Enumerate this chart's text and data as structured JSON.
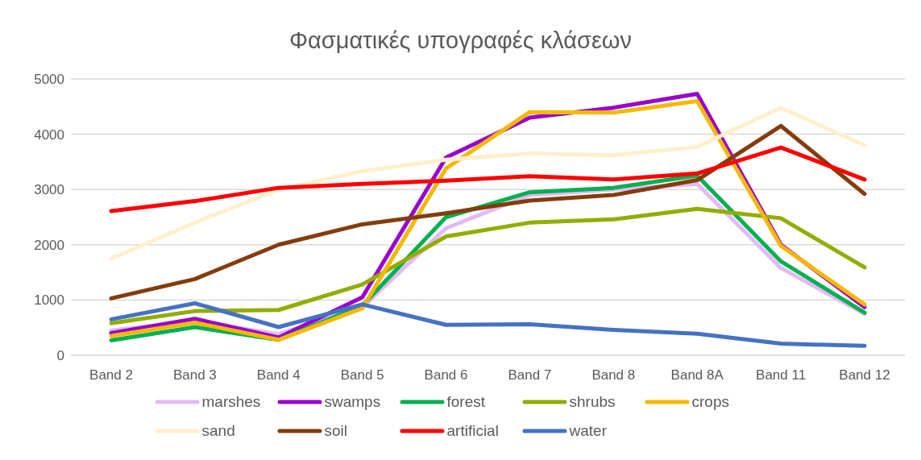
{
  "chart_data": {
    "type": "line",
    "title": "Φασματικές υπογραφές κλάσεων",
    "categories": [
      "Band 2",
      "Band 3",
      "Band 4",
      "Band 5",
      "Band 6",
      "Band 7",
      "Band 8",
      "Band 8A",
      "Band 11",
      "Band 12"
    ],
    "series": [
      {
        "name": "marshes",
        "color": "#e4b9f7",
        "values": [
          450,
          620,
          380,
          870,
          2300,
          2900,
          3000,
          3100,
          1580,
          750
        ]
      },
      {
        "name": "swamps",
        "color": "#9900cc",
        "values": [
          400,
          660,
          320,
          1050,
          3580,
          4300,
          4480,
          4730,
          2000,
          870
        ]
      },
      {
        "name": "forest",
        "color": "#00b050",
        "values": [
          270,
          510,
          280,
          900,
          2500,
          2950,
          3030,
          3250,
          1700,
          770
        ]
      },
      {
        "name": "shrubs",
        "color": "#92ad00",
        "values": [
          580,
          800,
          820,
          1280,
          2150,
          2400,
          2460,
          2650,
          2480,
          1590
        ]
      },
      {
        "name": "crops",
        "color": "#f5b800",
        "values": [
          350,
          590,
          280,
          850,
          3380,
          4400,
          4390,
          4600,
          1980,
          920
        ]
      },
      {
        "name": "sand",
        "color": "#fff0cc",
        "values": [
          1750,
          2400,
          3000,
          3330,
          3540,
          3650,
          3620,
          3770,
          4480,
          3800
        ]
      },
      {
        "name": "soil",
        "color": "#843c0c",
        "values": [
          1030,
          1380,
          2000,
          2370,
          2570,
          2800,
          2900,
          3170,
          4150,
          2920
        ]
      },
      {
        "name": "artificial",
        "color": "#ff0000",
        "values": [
          2610,
          2790,
          3030,
          3100,
          3160,
          3240,
          3180,
          3290,
          3760,
          3180
        ]
      },
      {
        "name": "water",
        "color": "#4472c4",
        "values": [
          650,
          940,
          510,
          920,
          550,
          560,
          460,
          390,
          210,
          170
        ]
      }
    ],
    "ylim": [
      0,
      5000
    ],
    "yticks": [
      0,
      1000,
      2000,
      3000,
      4000,
      5000
    ],
    "grid": "y",
    "legend": "bottom",
    "marker": "none",
    "line_style": "solid"
  }
}
